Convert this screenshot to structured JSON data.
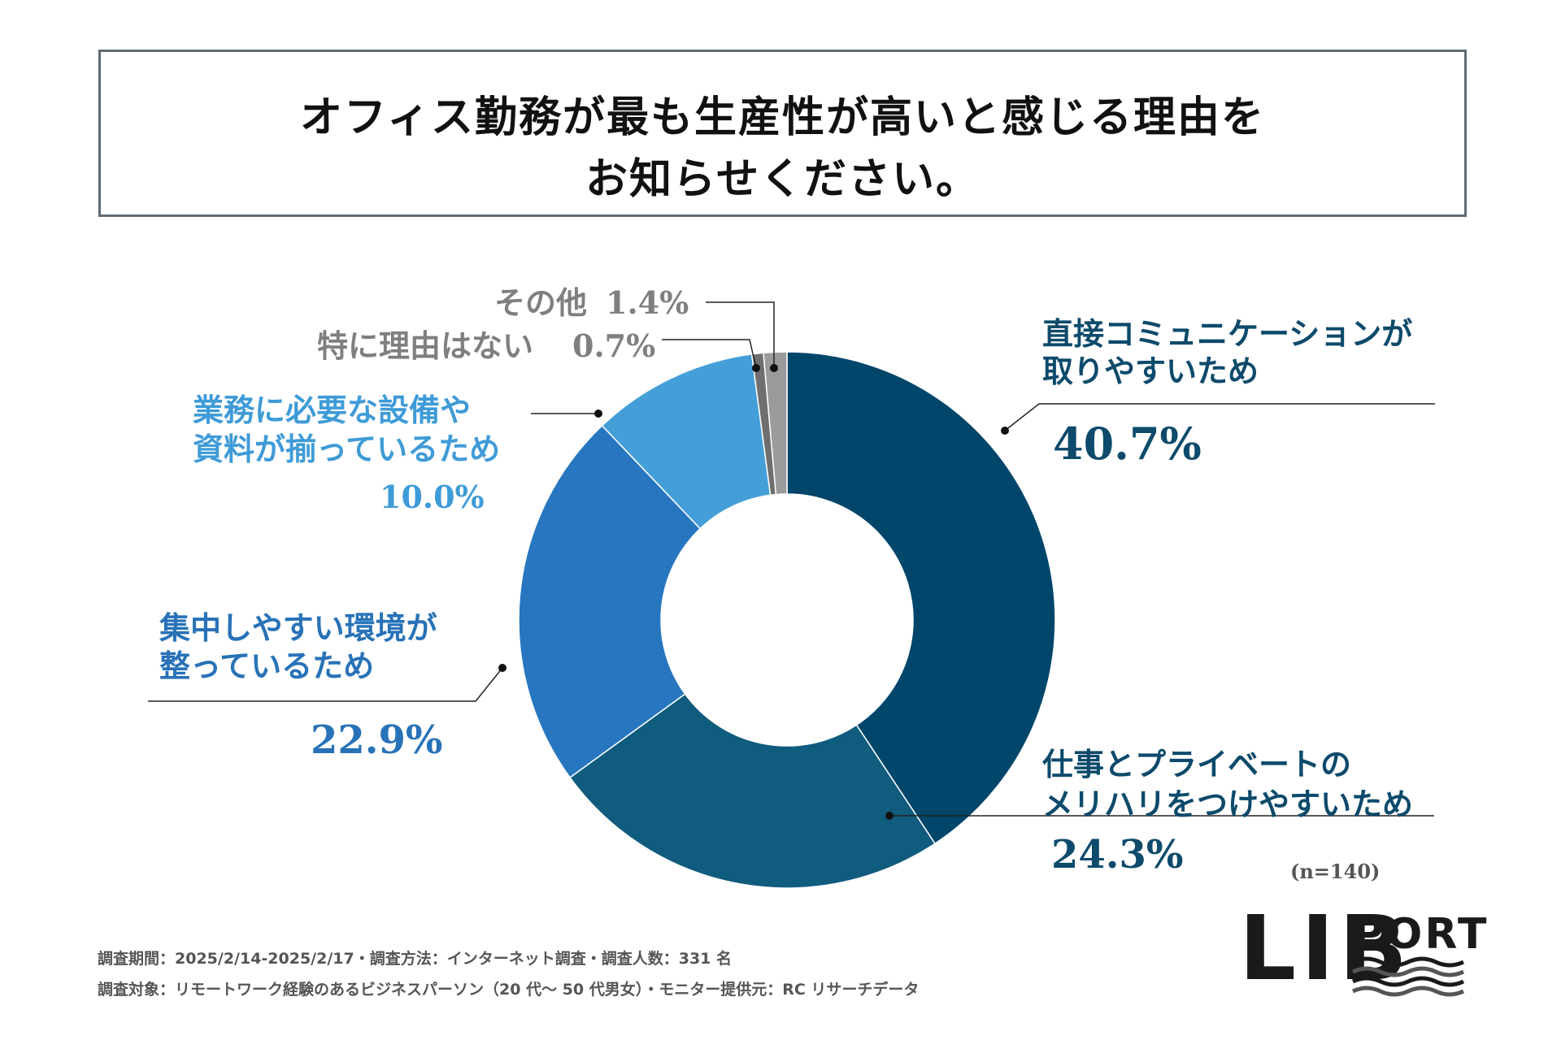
{
  "title": {
    "line1": "オフィス勤務が最も生産性が高いと感じる理由を",
    "line2": "お知らせください。"
  },
  "chart_data": {
    "type": "pie",
    "donut": true,
    "n_label": "(n=140)",
    "slices": [
      {
        "label_lines": [
          "直接コミュニケーションが",
          "取りやすいため"
        ],
        "value": 40.7,
        "value_text": "40.7%",
        "color": "#00466a",
        "text_color": "#0d4a6b"
      },
      {
        "label_lines": [
          "仕事とプライベートの",
          "メリハリをつけやすいため"
        ],
        "value": 24.3,
        "value_text": "24.3%",
        "color": "#105c7e",
        "text_color": "#0d4a6b"
      },
      {
        "label_lines": [
          "集中しやすい環境が",
          "整っているため"
        ],
        "value": 22.9,
        "value_text": "22.9%",
        "color": "#2776bf",
        "text_color": "#2872b7"
      },
      {
        "label_lines": [
          "業務に必要な設備や",
          "資料が揃っているため"
        ],
        "value": 10.0,
        "value_text": "10.0%",
        "color": "#449fd9",
        "text_color": "#3f9bd7"
      },
      {
        "label_lines": [
          "特に理由はない"
        ],
        "value": 0.7,
        "value_text": "0.7%",
        "color": "#6f6f6f",
        "text_color": "#7f7f7f"
      },
      {
        "label_lines": [
          "その他"
        ],
        "value": 1.4,
        "value_text": "1.4%",
        "color": "#9b9b9b",
        "text_color": "#7f7f7f"
      }
    ]
  },
  "footnotes": {
    "line1": "調査期間：2025/2/14-2025/2/17・調査方法：インターネット調査・調査人数：331 名",
    "line2": "調査対象：リモートワーク経験のあるビジネスパーソン（20 代〜 50 代男女）・モニター提供元：RC リサーチデータ"
  },
  "logo": {
    "part1": "LIB",
    "part2": "PORT"
  }
}
